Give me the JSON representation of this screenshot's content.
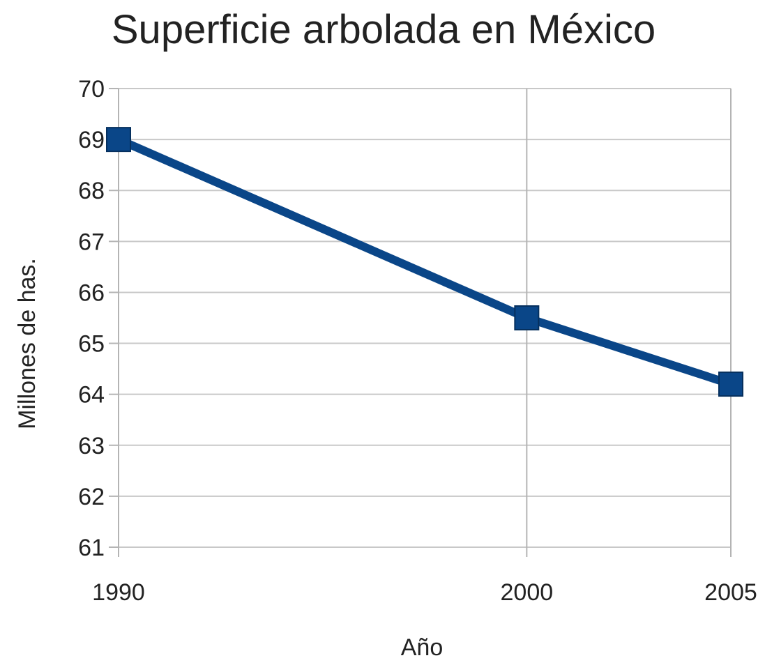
{
  "chart_data": {
    "type": "line",
    "title": "Superficie arbolada en México",
    "xlabel": "Año",
    "ylabel": "Millones de has.",
    "categories": [
      "1990",
      "2000",
      "2005"
    ],
    "series": [
      {
        "values": [
          69.0,
          65.5,
          64.2
        ],
        "color": "#0a4688",
        "marker": "square"
      }
    ],
    "ylim": [
      61,
      70
    ],
    "yticks": [
      "61",
      "62",
      "63",
      "64",
      "65",
      "66",
      "67",
      "68",
      "69",
      "70"
    ],
    "grid": true,
    "legend": "none"
  }
}
